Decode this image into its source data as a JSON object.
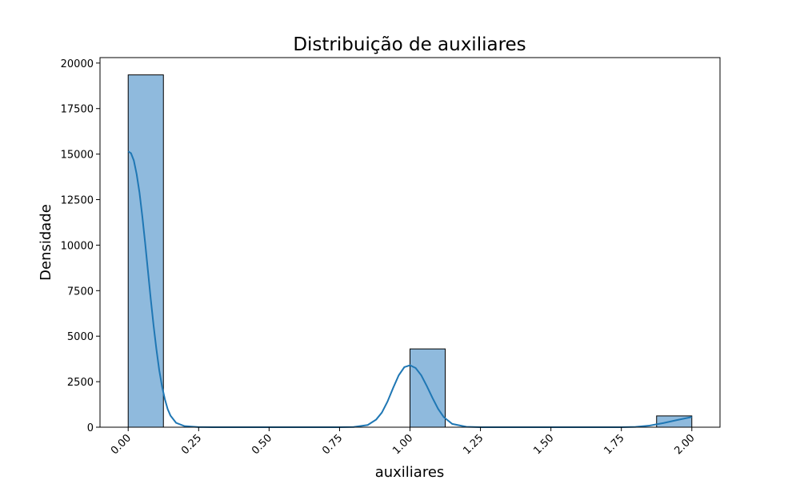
{
  "chart_data": {
    "type": "bar",
    "title": "Distribuição de auxiliares",
    "xlabel": "auxiliares",
    "ylabel": "Densidade",
    "xlim": [
      -0.1,
      2.1
    ],
    "ylim": [
      0,
      20300
    ],
    "x_ticks": [
      0.0,
      0.25,
      0.5,
      0.75,
      1.0,
      1.25,
      1.5,
      1.75,
      2.0
    ],
    "x_tick_labels": [
      "0.00",
      "0.25",
      "0.50",
      "0.75",
      "1.00",
      "1.25",
      "1.50",
      "1.75",
      "2.00"
    ],
    "y_ticks": [
      0,
      2500,
      5000,
      7500,
      10000,
      12500,
      15000,
      17500,
      20000
    ],
    "y_tick_labels": [
      "0",
      "2500",
      "5000",
      "7500",
      "10000",
      "12500",
      "15000",
      "17500",
      "20000"
    ],
    "x_tick_rotation": 45,
    "grid": false,
    "bin_width": 0.125,
    "bins": [
      {
        "x0": 0.0,
        "x1": 0.125,
        "value": 19350
      },
      {
        "x0": 1.0,
        "x1": 1.125,
        "value": 4300
      },
      {
        "x0": 1.875,
        "x1": 2.0,
        "value": 620
      }
    ],
    "kde": [
      [
        0.0,
        15150
      ],
      [
        0.01,
        15050
      ],
      [
        0.02,
        14650
      ],
      [
        0.03,
        13900
      ],
      [
        0.04,
        12900
      ],
      [
        0.05,
        11600
      ],
      [
        0.06,
        10150
      ],
      [
        0.07,
        8600
      ],
      [
        0.08,
        7050
      ],
      [
        0.09,
        5600
      ],
      [
        0.1,
        4300
      ],
      [
        0.11,
        3150
      ],
      [
        0.12,
        2250
      ],
      [
        0.13,
        1550
      ],
      [
        0.14,
        1000
      ],
      [
        0.15,
        640
      ],
      [
        0.17,
        240
      ],
      [
        0.2,
        60
      ],
      [
        0.25,
        5
      ],
      [
        0.3,
        0
      ],
      [
        0.5,
        0
      ],
      [
        0.75,
        0
      ],
      [
        0.8,
        10
      ],
      [
        0.85,
        120
      ],
      [
        0.88,
        420
      ],
      [
        0.9,
        800
      ],
      [
        0.92,
        1400
      ],
      [
        0.94,
        2150
      ],
      [
        0.96,
        2850
      ],
      [
        0.98,
        3300
      ],
      [
        1.0,
        3400
      ],
      [
        1.02,
        3250
      ],
      [
        1.04,
        2850
      ],
      [
        1.06,
        2250
      ],
      [
        1.08,
        1600
      ],
      [
        1.1,
        1000
      ],
      [
        1.12,
        550
      ],
      [
        1.15,
        180
      ],
      [
        1.2,
        20
      ],
      [
        1.25,
        0
      ],
      [
        1.5,
        0
      ],
      [
        1.75,
        0
      ],
      [
        1.8,
        15
      ],
      [
        1.85,
        90
      ],
      [
        1.9,
        230
      ],
      [
        1.95,
        400
      ],
      [
        2.0,
        560
      ]
    ],
    "bar_color": "#8fbadd",
    "bar_edge_color": "#000000",
    "line_color": "#1f77b4"
  }
}
